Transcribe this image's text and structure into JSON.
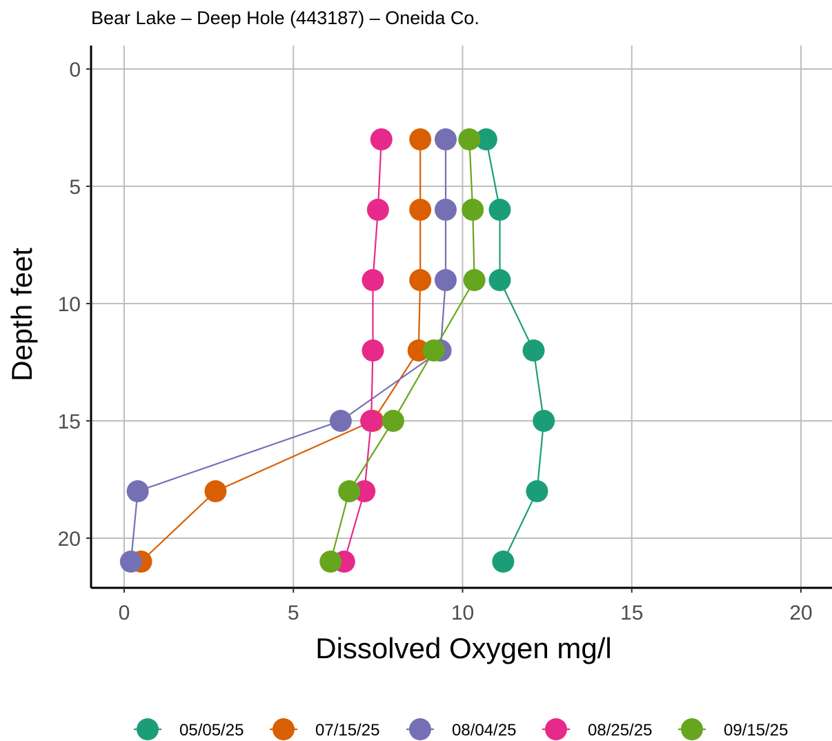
{
  "chart_data": {
    "type": "line",
    "title": "Bear Lake – Deep Hole (443187) – Oneida Co.",
    "xlabel": "Dissolved Oxygen mg/l",
    "ylabel": "Depth feet",
    "xlim": [
      0,
      20
    ],
    "ylim": [
      0,
      21
    ],
    "y_reversed": true,
    "x_ticks": [
      0,
      5,
      10,
      15,
      20
    ],
    "y_ticks": [
      0,
      5,
      10,
      15,
      20
    ],
    "grid": true,
    "legend_position": "bottom",
    "series": [
      {
        "name": "05/05/25",
        "color": "#1b9e77",
        "x": [
          10.7,
          11.1,
          11.1,
          12.1,
          12.4,
          12.2,
          11.2
        ],
        "y": [
          3,
          6,
          9,
          12,
          15,
          18,
          21
        ]
      },
      {
        "name": "07/15/25",
        "color": "#d95f02",
        "x": [
          8.75,
          8.75,
          8.75,
          8.7,
          7.35,
          2.7,
          0.5
        ],
        "y": [
          3,
          6,
          9,
          12,
          15,
          18,
          21
        ]
      },
      {
        "name": "08/04/25",
        "color": "#7570b3",
        "x": [
          9.5,
          9.5,
          9.5,
          9.35,
          6.4,
          0.4,
          0.2
        ],
        "y": [
          3,
          6,
          9,
          12,
          15,
          18,
          21
        ]
      },
      {
        "name": "08/25/25",
        "color": "#e7298a",
        "x": [
          7.6,
          7.5,
          7.35,
          7.35,
          7.3,
          7.1,
          6.5
        ],
        "y": [
          3,
          6,
          9,
          12,
          15,
          18,
          21
        ]
      },
      {
        "name": "09/15/25",
        "color": "#66a61e",
        "x": [
          10.2,
          10.3,
          10.35,
          9.15,
          7.95,
          6.65,
          6.1
        ],
        "y": [
          3,
          6,
          9,
          12,
          15,
          18,
          21
        ]
      }
    ]
  }
}
